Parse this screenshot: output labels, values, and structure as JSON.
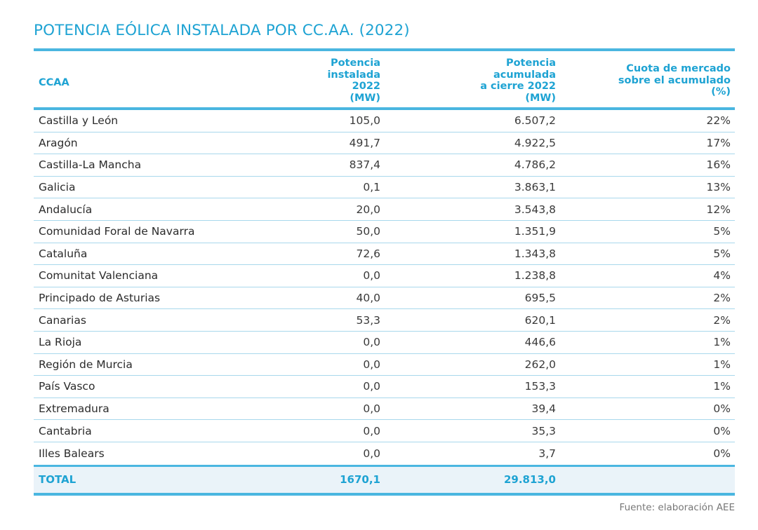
{
  "title": "POTENCIA EÓLICA INSTALADA POR CC.AA. (2022)",
  "table": {
    "headers": {
      "ccaa": "CCAA",
      "col1": "Potencia\ninstalada\n2022\n(MW)",
      "col2": "Potencia\nacumulada\na cierre 2022\n(MW)",
      "col3": "Cuota de mercado\nsobre el acumulado\n(%)"
    },
    "rows": [
      {
        "name": "Castilla y León",
        "instalada": "105,0",
        "acumulada": "6.507,2",
        "cuota": "22%"
      },
      {
        "name": "Aragón",
        "instalada": "491,7",
        "acumulada": "4.922,5",
        "cuota": "17%"
      },
      {
        "name": "Castilla-La Mancha",
        "instalada": "837,4",
        "acumulada": "4.786,2",
        "cuota": "16%"
      },
      {
        "name": "Galicia",
        "instalada": "0,1",
        "acumulada": "3.863,1",
        "cuota": "13%"
      },
      {
        "name": "Andalucía",
        "instalada": "20,0",
        "acumulada": "3.543,8",
        "cuota": "12%"
      },
      {
        "name": "Comunidad Foral de Navarra",
        "instalada": "50,0",
        "acumulada": "1.351,9",
        "cuota": "5%"
      },
      {
        "name": "Cataluña",
        "instalada": "72,6",
        "acumulada": "1.343,8",
        "cuota": "5%"
      },
      {
        "name": "Comunitat Valenciana",
        "instalada": "0,0",
        "acumulada": "1.238,8",
        "cuota": "4%"
      },
      {
        "name": "Principado de Asturias",
        "instalada": "40,0",
        "acumulada": "695,5",
        "cuota": "2%"
      },
      {
        "name": "Canarias",
        "instalada": "53,3",
        "acumulada": "620,1",
        "cuota": "2%"
      },
      {
        "name": "La Rioja",
        "instalada": "0,0",
        "acumulada": "446,6",
        "cuota": "1%"
      },
      {
        "name": "Región de Murcia",
        "instalada": "0,0",
        "acumulada": "262,0",
        "cuota": "1%"
      },
      {
        "name": "País Vasco",
        "instalada": "0,0",
        "acumulada": "153,3",
        "cuota": "1%"
      },
      {
        "name": "Extremadura",
        "instalada": "0,0",
        "acumulada": "39,4",
        "cuota": "0%"
      },
      {
        "name": "Cantabria",
        "instalada": "0,0",
        "acumulada": "35,3",
        "cuota": "0%"
      },
      {
        "name": "Illes Balears",
        "instalada": "0,0",
        "acumulada": "3,7",
        "cuota": "0%"
      }
    ],
    "total": {
      "label": "TOTAL",
      "instalada": "1670,1",
      "acumulada": "29.813,0"
    }
  },
  "source": "Fuente: elaboración AEE",
  "colors": {
    "accent": "#1ea3d3",
    "rule": "#4ab6e0",
    "row_divider": "#a8d8ec",
    "total_bg": "#eaf3f9"
  }
}
